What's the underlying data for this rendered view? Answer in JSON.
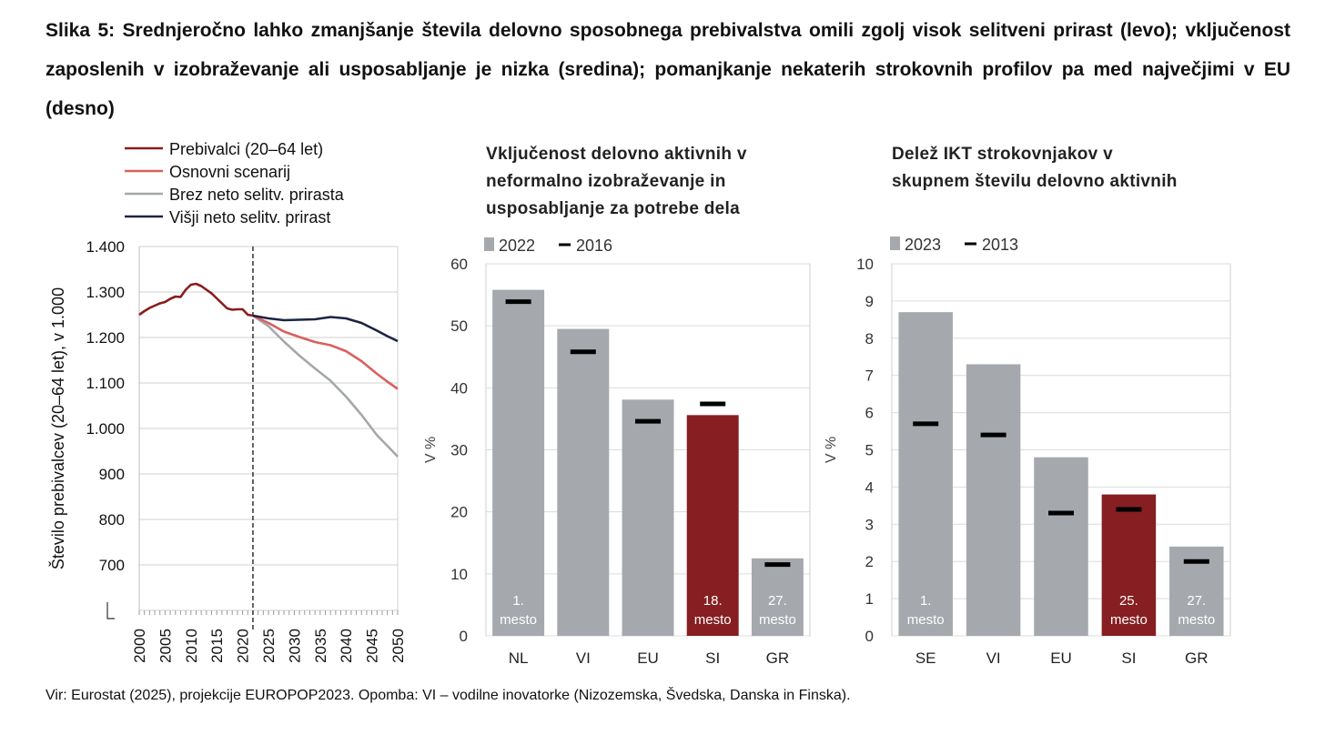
{
  "figure_title": "Slika 5: Srednjeročno lahko zmanjšanje števila delovno sposobnega prebivalstva omili zgolj visok selitveni prirast (levo); vključenost zaposlenih v izobraževanje ali usposabljanje je nizka (sredina); pomanjkanje nekaterih strokovnih profilov pa med največjimi v EU (desno)",
  "source_note": "Vir: Eurostat (2025), projekcije EUROPOP2023. Opomba: VI – vodilne inovatorke (Nizozemska, Švedska, Danska in Finska).",
  "colors": {
    "dark_red": "#8b1c1c",
    "light_red": "#d9605e",
    "gray": "#a3a8ab",
    "navy": "#1b2444",
    "bar_gray": "#a5a9ad",
    "bar_highlight": "#861e22"
  },
  "chart_data": [
    {
      "type": "line",
      "ylabel": "Število prebivalcev (20–64 let), v 1.000",
      "xlabel": "",
      "y_ticks": [
        "1.400",
        "1.300",
        "1.200",
        "1.100",
        "1.000",
        "900",
        "800",
        "700"
      ],
      "ylim": [
        600,
        1400
      ],
      "x_ticks": [
        "2000",
        "2005",
        "2010",
        "2015",
        "2020",
        "2025",
        "2030",
        "2035",
        "2040",
        "2045",
        "2050"
      ],
      "xlim": [
        2000,
        2050
      ],
      "divider_year": 2022,
      "series": [
        {
          "name": "Prebivalci (20–64 let)",
          "color": "#8b1c1c",
          "x": [
            2000,
            2001,
            2002,
            2003,
            2004,
            2005,
            2006,
            2007,
            2008,
            2009,
            2010,
            2011,
            2012,
            2013,
            2014,
            2015,
            2016,
            2017,
            2018,
            2019,
            2020,
            2021,
            2022
          ],
          "y": [
            1250,
            1258,
            1265,
            1270,
            1275,
            1278,
            1285,
            1290,
            1289,
            1305,
            1316,
            1318,
            1313,
            1305,
            1297,
            1286,
            1275,
            1264,
            1261,
            1262,
            1262,
            1250,
            1248
          ]
        },
        {
          "name": "Osnovni scenarij",
          "color": "#d9605e",
          "x": [
            2022,
            2025,
            2028,
            2031,
            2034,
            2037,
            2040,
            2043,
            2046,
            2048,
            2050
          ],
          "y": [
            1248,
            1232,
            1213,
            1201,
            1190,
            1183,
            1170,
            1148,
            1120,
            1103,
            1087
          ]
        },
        {
          "name": "Brez neto selitv. prirasta",
          "color": "#a3a8ab",
          "x": [
            2022,
            2025,
            2028,
            2031,
            2034,
            2037,
            2040,
            2043,
            2046,
            2048,
            2050
          ],
          "y": [
            1248,
            1225,
            1191,
            1160,
            1132,
            1105,
            1070,
            1030,
            985,
            962,
            938
          ]
        },
        {
          "name": "Višji neto selitv. prirast",
          "color": "#1b2444",
          "x": [
            2022,
            2025,
            2028,
            2031,
            2034,
            2037,
            2040,
            2043,
            2046,
            2048,
            2050
          ],
          "y": [
            1248,
            1242,
            1238,
            1239,
            1240,
            1245,
            1242,
            1232,
            1215,
            1203,
            1192
          ]
        }
      ]
    },
    {
      "type": "bar",
      "title": "Vključenost delovno aktivnih v neformalno izobraževanje in usposabljanje za potrebe dela",
      "ylabel": "V %",
      "ylim": [
        0,
        60
      ],
      "y_ticks": [
        0,
        10,
        20,
        30,
        40,
        50,
        60
      ],
      "categories": [
        "NL",
        "VI",
        "EU",
        "SI",
        "GR"
      ],
      "highlight": "SI",
      "series": [
        {
          "name": "2022",
          "values": [
            55.8,
            49.5,
            38.1,
            35.6,
            12.5
          ]
        },
        {
          "name": "2016",
          "values": [
            53.9,
            45.8,
            34.6,
            37.4,
            11.5
          ]
        }
      ],
      "rank_labels": [
        {
          "category": "NL",
          "line1": "1.",
          "line2": "mesto"
        },
        {
          "category": "SI",
          "line1": "18.",
          "line2": "mesto"
        },
        {
          "category": "GR",
          "line1": "27.",
          "line2": "mesto"
        }
      ]
    },
    {
      "type": "bar",
      "title": "Delež IKT strokovnjakov v skupnem številu delovno aktivnih",
      "ylabel": "V %",
      "ylim": [
        0,
        10
      ],
      "y_ticks": [
        0,
        1,
        2,
        3,
        4,
        5,
        6,
        7,
        8,
        9,
        10
      ],
      "categories": [
        "SE",
        "VI",
        "EU",
        "SI",
        "GR"
      ],
      "highlight": "SI",
      "series": [
        {
          "name": "2023",
          "values": [
            8.7,
            7.3,
            4.8,
            3.8,
            2.4
          ]
        },
        {
          "name": "2013",
          "values": [
            5.7,
            5.4,
            3.3,
            3.4,
            2.0
          ]
        }
      ],
      "rank_labels": [
        {
          "category": "SE",
          "line1": "1.",
          "line2": "mesto"
        },
        {
          "category": "SI",
          "line1": "25.",
          "line2": "mesto"
        },
        {
          "category": "GR",
          "line1": "27.",
          "line2": "mesto"
        }
      ]
    }
  ]
}
